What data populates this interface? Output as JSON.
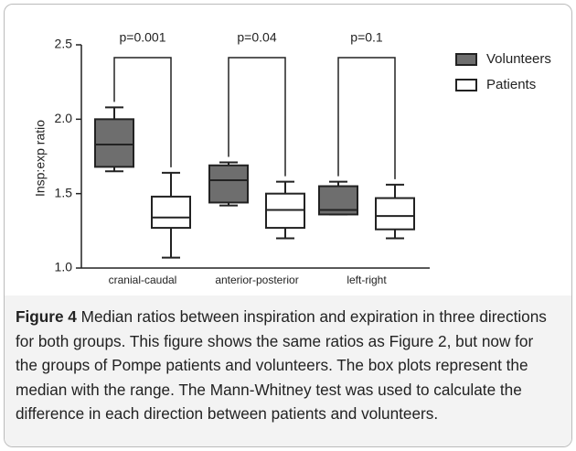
{
  "chart_data": {
    "type": "box",
    "ylabel": "Insp:exp ratio",
    "categories": [
      "cranial-caudal",
      "anterior-posterior",
      "left-right"
    ],
    "annotations": [
      "p=0.001",
      "p=0.04",
      "p=0.1"
    ],
    "ylim": [
      1.0,
      2.5
    ],
    "yticks": [
      {
        "value": 1.0,
        "label": "1.0"
      },
      {
        "value": 1.5,
        "label": "1.5"
      },
      {
        "value": 2.0,
        "label": "2.0"
      },
      {
        "value": 2.5,
        "label": "2.5"
      }
    ],
    "legend": "upper right",
    "series": [
      {
        "name": "Volunteers",
        "color": "#6e6e6e",
        "min": [
          1.65,
          1.42,
          1.36
        ],
        "q1": [
          1.68,
          1.44,
          1.36
        ],
        "median": [
          1.83,
          1.59,
          1.39
        ],
        "q3": [
          2.0,
          1.69,
          1.55
        ],
        "max": [
          2.08,
          1.71,
          1.58
        ]
      },
      {
        "name": "Patients",
        "color": "#ffffff",
        "min": [
          1.07,
          1.2,
          1.2
        ],
        "q1": [
          1.27,
          1.27,
          1.26
        ],
        "median": [
          1.34,
          1.39,
          1.35
        ],
        "q3": [
          1.48,
          1.5,
          1.47
        ],
        "max": [
          1.64,
          1.58,
          1.56
        ]
      }
    ]
  },
  "caption": {
    "label": "Figure 4",
    "text": "Median ratios between inspiration and expiration in three directions for both groups. This figure shows the same ratios as Figure 2, but now for the groups of Pompe patients and volunteers. The box plots represent the median with the range. The Mann-Whitney test was used to calculate the difference in each direction between patients and volunteers."
  }
}
